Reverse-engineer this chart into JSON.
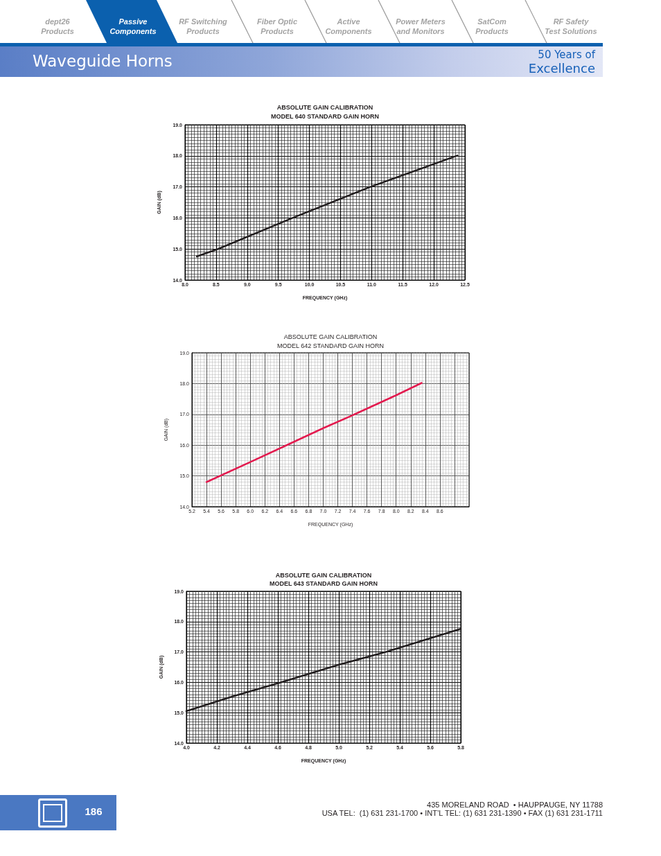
{
  "chart_data": [
    {
      "type": "other",
      "title": "Waveguide Horns",
      "subtitle": "50 Years of\nExcellence",
      "annotations": [
        "dept26\nProducts",
        "Passive\nComponents",
        "RF Switching\nProducts",
        "Fiber Optic\nProducts",
        "Active\nComponents",
        "Power Meters\nand Monitors",
        "SatCom\nProducts",
        "RF Safety\nTest Solutions"
      ]
    },
    {
      "type": "line",
      "title": "ABSOLUTE GAIN CALIBRATION",
      "subtitle": "MODEL 640 STANDARD GAIN HORN",
      "xlabel": "FREQUENCY (GHz)",
      "ylabel": "GAIN (dB)",
      "x": [
        8.19,
        8.53,
        9.73,
        10.98,
        12.38
      ],
      "series": [
        {
          "color": "#231f20",
          "values": [
            14.76,
            15.0,
            16.0,
            17.0,
            18.01
          ]
        }
      ],
      "xlim": [
        8,
        12.5
      ],
      "ylim": [
        14,
        19
      ],
      "xticks": [
        {
          "value": 8,
          "label": "8.0"
        },
        8.5,
        {
          "value": 9,
          "label": "9.0"
        },
        9.5,
        {
          "value": 10,
          "label": "10.0"
        },
        10.5,
        {
          "value": 11,
          "label": "11.0"
        },
        11.5,
        {
          "value": 12,
          "label": "12.0"
        },
        12.5
      ],
      "yticks": [
        {
          "value": 14,
          "label": "14.0"
        },
        {
          "value": 15,
          "label": "15.0"
        },
        {
          "value": 16,
          "label": "16.0"
        },
        {
          "value": 17,
          "label": "17.0"
        },
        {
          "value": 18,
          "label": "18.0"
        },
        {
          "value": 19,
          "label": "19.0"
        }
      ],
      "grid": true
    },
    {
      "type": "line",
      "title": "ABSOLUTE GAIN CALIBRATION",
      "subtitle": "MODEL 642 STANDARD GAIN HORN",
      "xlabel": "FREQUENCY (GHz)",
      "ylabel": "GAIN (dB)",
      "x": [
        5.4,
        6.0,
        6.5,
        7.0,
        7.43,
        8.0,
        8.35
      ],
      "series": [
        {
          "color": "#e31b4f",
          "values": [
            14.8,
            15.45,
            16.0,
            16.55,
            17.0,
            17.62,
            18.02
          ]
        }
      ],
      "xlim": [
        5.2,
        9.0
      ],
      "ylim": [
        14,
        19
      ],
      "xticks": [
        5.2,
        5.4,
        5.6,
        5.8,
        {
          "value": 6,
          "label": "6.0"
        },
        6.2,
        6.4,
        6.6,
        6.8,
        {
          "value": 7,
          "label": "7.0"
        },
        7.2,
        7.4,
        7.6,
        7.8,
        {
          "value": 8,
          "label": "8.0"
        },
        8.2,
        8.4,
        8.6
      ],
      "yticks": [
        {
          "value": 14,
          "label": "14.0"
        },
        {
          "value": 15,
          "label": "15.0"
        },
        {
          "value": 16,
          "label": "16.0"
        },
        {
          "value": 17,
          "label": "17.0"
        },
        {
          "value": 18,
          "label": "18.0"
        },
        {
          "value": 19,
          "label": "19.0"
        }
      ],
      "grid": true
    },
    {
      "type": "line",
      "title": "ABSOLUTE GAIN CALIBRATION",
      "subtitle": "MODEL 643 STANDARD GAIN HORN",
      "xlabel": "FREQUENCY (GHz)",
      "ylabel": "GAIN (dB)",
      "x": [
        4.0,
        4.3,
        4.62,
        5.0,
        5.31,
        5.8
      ],
      "series": [
        {
          "color": "#231f20",
          "values": [
            15.05,
            15.53,
            16.0,
            16.58,
            17.0,
            17.76
          ]
        }
      ],
      "xlim": [
        4,
        5.8
      ],
      "ylim": [
        14,
        19
      ],
      "xticks": [
        {
          "value": 4,
          "label": "4.0"
        },
        4.2,
        4.4,
        4.6,
        4.8,
        {
          "value": 5,
          "label": "5.0"
        },
        5.2,
        5.4,
        5.6,
        5.8
      ],
      "yticks": [
        {
          "value": 14,
          "label": "14.0"
        },
        {
          "value": 15,
          "label": "15.0"
        },
        {
          "value": 16,
          "label": "16.0"
        },
        {
          "value": 17,
          "label": "17.0"
        },
        {
          "value": 18,
          "label": "18.0"
        },
        {
          "value": 19,
          "label": "19.0"
        }
      ],
      "grid": true
    },
    {
      "type": "other",
      "annotations": [
        "186",
        "435 MORELAND ROAD  • HAUPPAUGE, NY 11788",
        "USA TEL:  (1) 631 231-1700 • INT’L TEL: (1) 631 231-1390 • FAX (1) 631 231-1711"
      ]
    }
  ]
}
